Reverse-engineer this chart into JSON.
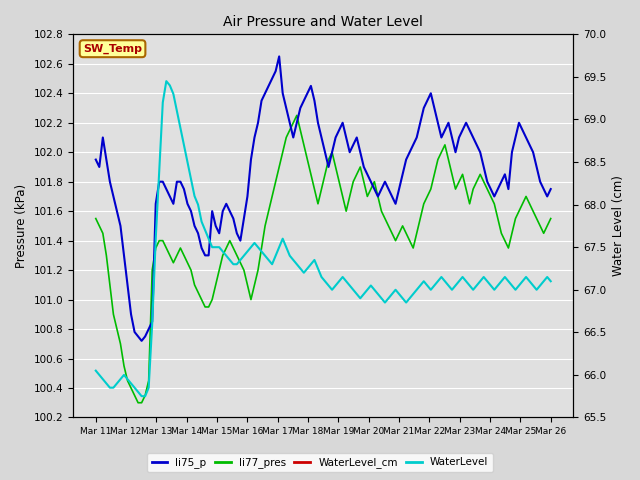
{
  "title": "Air Pressure and Water Level",
  "ylabel_left": "Pressure (kPa)",
  "ylabel_right": "Water Level (cm)",
  "ylim_left": [
    100.2,
    102.8
  ],
  "ylim_right": [
    65.5,
    70.0
  ],
  "yticks_left": [
    100.2,
    100.4,
    100.6,
    100.8,
    101.0,
    101.2,
    101.4,
    101.6,
    101.8,
    102.0,
    102.2,
    102.4,
    102.6,
    102.8
  ],
  "yticks_right": [
    65.5,
    66.0,
    66.5,
    67.0,
    67.5,
    68.0,
    68.5,
    69.0,
    69.5,
    70.0
  ],
  "xtick_labels": [
    "Mar 11",
    "Mar 12",
    "Mar 13",
    "Mar 14",
    "Mar 15",
    "Mar 16",
    "Mar 17",
    "Mar 18",
    "Mar 19",
    "Mar 20",
    "Mar 21",
    "Mar 22",
    "Mar 23",
    "Mar 24",
    "Mar 25",
    "Mar 26"
  ],
  "colors": {
    "li75_p": "#0000cc",
    "li77_pres": "#00bb00",
    "WaterLevel_cm": "#cc0000",
    "WaterLevel": "#00cccc",
    "background": "#e0e0e0",
    "grid": "#ffffff"
  },
  "annotation_text": "SW_Temp",
  "annotation_color": "#aa0000",
  "annotation_bg": "#ffff99",
  "annotation_border": "#aa6600",
  "li75_p": [
    101.95,
    101.9,
    102.1,
    101.95,
    101.8,
    101.7,
    101.6,
    101.5,
    101.3,
    101.1,
    100.9,
    100.78,
    100.75,
    100.72,
    100.75,
    100.8,
    100.85,
    101.65,
    101.8,
    101.8,
    101.75,
    101.7,
    101.65,
    101.8,
    101.8,
    101.75,
    101.65,
    101.6,
    101.5,
    101.45,
    101.35,
    101.3,
    101.3,
    101.6,
    101.5,
    101.45,
    101.6,
    101.65,
    101.6,
    101.55,
    101.45,
    101.4,
    101.55,
    101.7,
    101.95,
    102.1,
    102.2,
    102.35,
    102.4,
    102.45,
    102.5,
    102.55,
    102.65,
    102.4,
    102.3,
    102.2,
    102.1,
    102.2,
    102.3,
    102.35,
    102.4,
    102.45,
    102.35,
    102.2,
    102.1,
    102.0,
    101.9,
    102.0,
    102.1,
    102.15,
    102.2,
    102.1,
    102.0,
    102.05,
    102.1,
    102.0,
    101.9,
    101.85,
    101.8,
    101.75,
    101.7,
    101.75,
    101.8,
    101.75,
    101.7,
    101.65,
    101.75,
    101.85,
    101.95,
    102.0,
    102.05,
    102.1,
    102.2,
    102.3,
    102.35,
    102.4,
    102.3,
    102.2,
    102.1,
    102.15,
    102.2,
    102.1,
    102.0,
    102.1,
    102.15,
    102.2,
    102.15,
    102.1,
    102.05,
    102.0,
    101.9,
    101.8,
    101.75,
    101.7,
    101.75,
    101.8,
    101.85,
    101.75,
    102.0,
    102.1,
    102.2,
    102.15,
    102.1,
    102.05,
    102.0,
    101.9,
    101.8,
    101.75,
    101.7,
    101.75
  ],
  "li77_pres": [
    101.55,
    101.5,
    101.45,
    101.3,
    101.1,
    100.9,
    100.8,
    100.7,
    100.55,
    100.45,
    100.4,
    100.35,
    100.3,
    100.3,
    100.35,
    100.45,
    101.2,
    101.35,
    101.4,
    101.4,
    101.35,
    101.3,
    101.25,
    101.3,
    101.35,
    101.3,
    101.25,
    101.2,
    101.1,
    101.05,
    101.0,
    100.95,
    100.95,
    101.0,
    101.1,
    101.2,
    101.3,
    101.35,
    101.4,
    101.35,
    101.3,
    101.25,
    101.2,
    101.1,
    101.0,
    101.1,
    101.2,
    101.35,
    101.5,
    101.6,
    101.7,
    101.8,
    101.9,
    102.0,
    102.1,
    102.15,
    102.2,
    102.25,
    102.15,
    102.05,
    101.95,
    101.85,
    101.75,
    101.65,
    101.75,
    101.85,
    101.95,
    102.0,
    101.9,
    101.8,
    101.7,
    101.6,
    101.7,
    101.8,
    101.85,
    101.9,
    101.8,
    101.7,
    101.75,
    101.8,
    101.7,
    101.6,
    101.55,
    101.5,
    101.45,
    101.4,
    101.45,
    101.5,
    101.45,
    101.4,
    101.35,
    101.45,
    101.55,
    101.65,
    101.7,
    101.75,
    101.85,
    101.95,
    102.0,
    102.05,
    101.95,
    101.85,
    101.75,
    101.8,
    101.85,
    101.75,
    101.65,
    101.75,
    101.8,
    101.85,
    101.8,
    101.75,
    101.7,
    101.65,
    101.55,
    101.45,
    101.4,
    101.35,
    101.45,
    101.55,
    101.6,
    101.65,
    101.7,
    101.65,
    101.6,
    101.55,
    101.5,
    101.45,
    101.5,
    101.55
  ],
  "WaterLevel": [
    66.05,
    66.0,
    65.95,
    65.9,
    65.85,
    65.85,
    65.9,
    65.95,
    66.0,
    65.95,
    65.9,
    65.85,
    65.8,
    65.75,
    65.75,
    65.85,
    66.6,
    67.6,
    68.4,
    69.2,
    69.45,
    69.4,
    69.3,
    69.1,
    68.9,
    68.7,
    68.5,
    68.3,
    68.1,
    68.0,
    67.8,
    67.7,
    67.6,
    67.5,
    67.5,
    67.5,
    67.45,
    67.4,
    67.35,
    67.3,
    67.3,
    67.35,
    67.4,
    67.45,
    67.5,
    67.55,
    67.5,
    67.45,
    67.4,
    67.35,
    67.3,
    67.4,
    67.5,
    67.6,
    67.5,
    67.4,
    67.35,
    67.3,
    67.25,
    67.2,
    67.25,
    67.3,
    67.35,
    67.25,
    67.15,
    67.1,
    67.05,
    67.0,
    67.05,
    67.1,
    67.15,
    67.1,
    67.05,
    67.0,
    66.95,
    66.9,
    66.95,
    67.0,
    67.05,
    67.0,
    66.95,
    66.9,
    66.85,
    66.9,
    66.95,
    67.0,
    66.95,
    66.9,
    66.85,
    66.9,
    66.95,
    67.0,
    67.05,
    67.1,
    67.05,
    67.0,
    67.05,
    67.1,
    67.15,
    67.1,
    67.05,
    67.0,
    67.05,
    67.1,
    67.15,
    67.1,
    67.05,
    67.0,
    67.05,
    67.1,
    67.15,
    67.1,
    67.05,
    67.0,
    67.05,
    67.1,
    67.15,
    67.1,
    67.05,
    67.0,
    67.05,
    67.1,
    67.15,
    67.1,
    67.05,
    67.0,
    67.05,
    67.1,
    67.15,
    67.1
  ],
  "figsize": [
    6.4,
    4.8
  ],
  "dpi": 100
}
